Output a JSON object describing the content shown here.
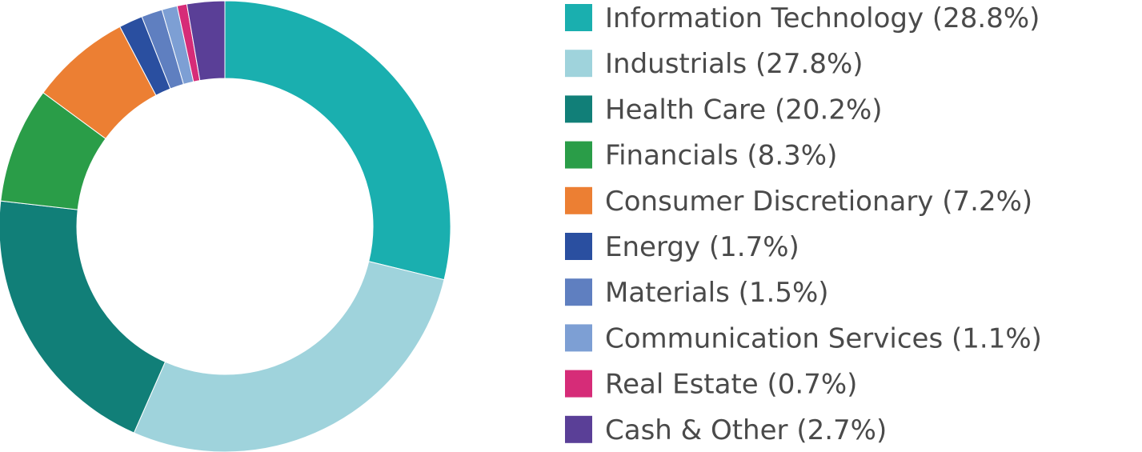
{
  "chart_data": {
    "type": "donut",
    "categories": [
      "Information Technology",
      "Industrials",
      "Health Care",
      "Financials",
      "Consumer Discretionary",
      "Energy",
      "Materials",
      "Communication Services",
      "Real Estate",
      "Cash & Other"
    ],
    "values": [
      28.8,
      27.8,
      20.2,
      8.3,
      7.2,
      1.7,
      1.5,
      1.1,
      0.7,
      2.7
    ],
    "value_labels": [
      "(28.8%)",
      "(27.8%)",
      "(20.2%)",
      "(8.3%)",
      "(7.2%)",
      "(1.7%)",
      "(1.5%)",
      "(1.1%)",
      "(0.7%)",
      "(2.7%)"
    ],
    "colors": [
      "#1aafaf",
      "#9fd3dc",
      "#117f78",
      "#2a9d48",
      "#ec7f33",
      "#2a4fa0",
      "#5f7fc0",
      "#7d9fd4",
      "#d62c78",
      "#5a3f97"
    ],
    "legend": "right"
  }
}
